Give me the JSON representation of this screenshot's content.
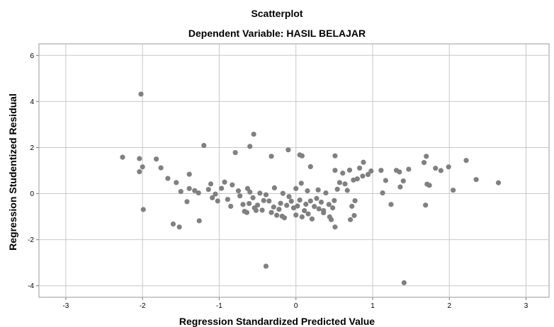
{
  "chart_data": {
    "type": "scatter",
    "title": "Scatterplot",
    "subtitle": "Dependent Variable: HASIL BELAJAR",
    "xlabel": "Regression Standardized Predicted Value",
    "ylabel": "Regression Studentized Residual",
    "xlim": [
      -3.35,
      3.3
    ],
    "ylim": [
      -4.5,
      6.5
    ],
    "xticks": [
      "-3",
      "-2",
      "-1",
      "0",
      "1",
      "2",
      "3"
    ],
    "yticks": [
      "-4",
      "-2",
      "0",
      "2",
      "4",
      "6"
    ],
    "xtick_values": [
      -3,
      -2,
      -1,
      0,
      1,
      2,
      3
    ],
    "ytick_values": [
      -4,
      -2,
      0,
      2,
      4,
      6
    ],
    "grid": true,
    "point_color": "#808080",
    "grid_color": "#c8c8c8",
    "points": [
      [
        -2.26,
        1.58
      ],
      [
        -2.04,
        1.52
      ],
      [
        -2.02,
        4.32
      ],
      [
        -2.0,
        1.16
      ],
      [
        -2.04,
        0.95
      ],
      [
        -1.99,
        -0.69
      ],
      [
        -1.82,
        1.5
      ],
      [
        -1.76,
        1.12
      ],
      [
        -1.67,
        0.66
      ],
      [
        -1.6,
        -1.32
      ],
      [
        -1.56,
        0.48
      ],
      [
        -1.52,
        -1.45
      ],
      [
        -1.5,
        0.09
      ],
      [
        -1.42,
        -0.35
      ],
      [
        -1.39,
        0.84
      ],
      [
        -1.39,
        0.22
      ],
      [
        -1.32,
        0.13
      ],
      [
        -1.27,
        0.03
      ],
      [
        -1.26,
        -1.18
      ],
      [
        -1.2,
        2.09
      ],
      [
        -1.14,
        0.18
      ],
      [
        -1.11,
        0.42
      ],
      [
        -1.09,
        -0.18
      ],
      [
        -1.05,
        -0.02
      ],
      [
        -1.02,
        -0.32
      ],
      [
        -0.97,
        0.23
      ],
      [
        -0.93,
        0.5
      ],
      [
        -0.89,
        -0.25
      ],
      [
        -0.85,
        -0.55
      ],
      [
        -0.83,
        0.38
      ],
      [
        -0.79,
        1.78
      ],
      [
        -0.75,
        0.12
      ],
      [
        -0.73,
        -0.1
      ],
      [
        -0.69,
        -0.47
      ],
      [
        -0.67,
        -0.77
      ],
      [
        -0.64,
        -0.82
      ],
      [
        -0.61,
        -0.43
      ],
      [
        -0.6,
        0.07
      ],
      [
        -0.56,
        -0.18
      ],
      [
        -0.54,
        -0.62
      ],
      [
        -0.52,
        -0.73
      ],
      [
        -0.5,
        -0.5
      ],
      [
        -0.47,
        0.02
      ],
      [
        -0.44,
        -0.72
      ],
      [
        -0.42,
        -0.3
      ],
      [
        -0.39,
        -0.05
      ],
      [
        -0.35,
        -0.32
      ],
      [
        -0.32,
        -0.82
      ],
      [
        -0.29,
        -0.58
      ],
      [
        -0.25,
        -0.94
      ],
      [
        -0.22,
        -0.68
      ],
      [
        -0.2,
        -0.42
      ],
      [
        -0.18,
        -0.98
      ],
      [
        -0.15,
        -1.05
      ],
      [
        -0.12,
        -0.51
      ],
      [
        -0.09,
        -0.13
      ],
      [
        -0.06,
        -0.33
      ],
      [
        -0.03,
        -0.62
      ],
      [
        0.0,
        -0.93
      ],
      [
        0.02,
        -0.54
      ],
      [
        0.05,
        -0.28
      ],
      [
        0.08,
        -1.01
      ],
      [
        0.11,
        -0.74
      ],
      [
        0.13,
        -0.46
      ],
      [
        0.16,
        -0.88
      ],
      [
        0.19,
        -0.32
      ],
      [
        0.21,
        -1.1
      ],
      [
        0.24,
        -0.56
      ],
      [
        0.27,
        -0.21
      ],
      [
        0.3,
        -0.66
      ],
      [
        0.33,
        -0.37
      ],
      [
        0.36,
        -0.83
      ],
      [
        0.39,
        0.03
      ],
      [
        0.43,
        -0.47
      ],
      [
        0.46,
        -1.13
      ],
      [
        0.48,
        -0.62
      ],
      [
        0.5,
        -0.3
      ],
      [
        0.51,
        1.01
      ],
      [
        0.54,
        0.19
      ],
      [
        0.57,
        0.48
      ],
      [
        0.61,
        0.89
      ],
      [
        0.64,
        0.42
      ],
      [
        0.67,
        0.14
      ],
      [
        0.7,
        1.02
      ],
      [
        0.73,
        -0.55
      ],
      [
        0.77,
        -0.31
      ],
      [
        0.8,
        0.64
      ],
      [
        0.83,
        1.11
      ],
      [
        0.87,
        0.76
      ],
      [
        0.88,
        1.36
      ],
      [
        0.94,
        0.83
      ],
      [
        0.98,
        0.98
      ],
      [
        -0.63,
        0.22
      ],
      [
        -0.55,
        2.58
      ],
      [
        -0.6,
        2.05
      ],
      [
        -0.32,
        1.62
      ],
      [
        -0.1,
        1.9
      ],
      [
        0.05,
        1.68
      ],
      [
        0.08,
        1.64
      ],
      [
        0.19,
        1.17
      ],
      [
        0.51,
        1.64
      ],
      [
        -0.39,
        -3.15
      ],
      [
        0.29,
        0.16
      ],
      [
        0.36,
        -0.74
      ],
      [
        0.44,
        -1.01
      ],
      [
        0.51,
        -1.45
      ],
      [
        0.76,
        -0.95
      ],
      [
        0.71,
        -1.13
      ],
      [
        0.75,
        0.59
      ],
      [
        0.0,
        0.22
      ],
      [
        0.07,
        0.45
      ],
      [
        0.15,
        0.12
      ],
      [
        -0.28,
        0.25
      ],
      [
        -0.17,
        0.01
      ],
      [
        1.11,
        1.01
      ],
      [
        1.13,
        0.03
      ],
      [
        1.17,
        0.57
      ],
      [
        1.24,
        -0.47
      ],
      [
        1.31,
        1.01
      ],
      [
        1.35,
        0.94
      ],
      [
        1.36,
        0.29
      ],
      [
        1.4,
        0.55
      ],
      [
        1.41,
        -3.87
      ],
      [
        1.47,
        1.06
      ],
      [
        1.67,
        1.35
      ],
      [
        1.7,
        1.62
      ],
      [
        1.69,
        -0.5
      ],
      [
        1.71,
        0.41
      ],
      [
        1.74,
        0.36
      ],
      [
        1.82,
        1.1
      ],
      [
        1.89,
        1.0
      ],
      [
        1.99,
        1.16
      ],
      [
        2.05,
        0.15
      ],
      [
        2.22,
        1.44
      ],
      [
        2.35,
        0.61
      ],
      [
        2.64,
        0.47
      ]
    ]
  }
}
